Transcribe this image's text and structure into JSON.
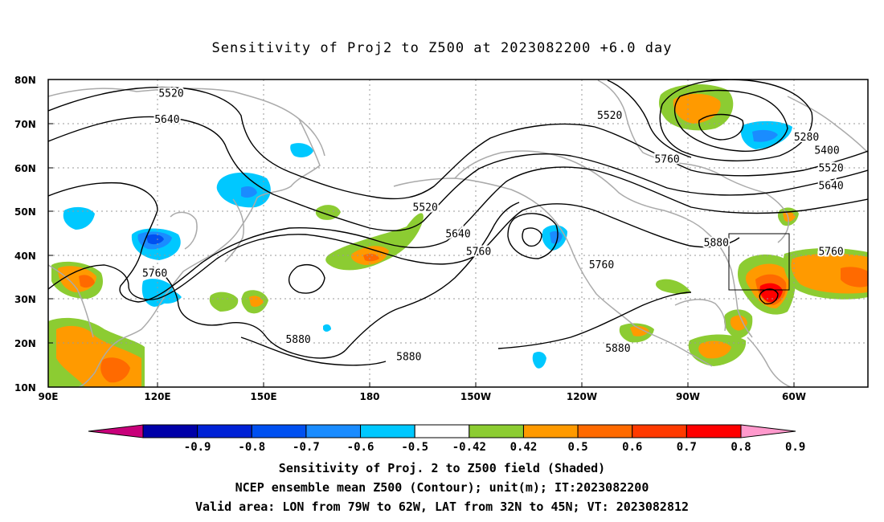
{
  "title": "Sensitivity of Proj2 to Z500 at 2023082200 +6.0 day",
  "map": {
    "lat_labels": [
      "80N",
      "70N",
      "60N",
      "50N",
      "40N",
      "30N",
      "20N",
      "10N"
    ],
    "lon_labels": [
      "90E",
      "120E",
      "150E",
      "180",
      "150W",
      "120W",
      "90W",
      "60W"
    ],
    "contour_labels": [
      {
        "text": "5520",
        "lon": 120,
        "lat": 77
      },
      {
        "text": "5640",
        "lon": 119,
        "lat": 71
      },
      {
        "text": "5520",
        "lon": 182,
        "lat": 51
      },
      {
        "text": "5640",
        "lon": 190,
        "lat": 45
      },
      {
        "text": "5760",
        "lon": 195,
        "lat": 41
      },
      {
        "text": "5760",
        "lon": 116,
        "lat": 36
      },
      {
        "text": "5880",
        "lon": 151,
        "lat": 21
      },
      {
        "text": "5880",
        "lon": 178,
        "lat": 17
      },
      {
        "text": "5520",
        "lon": 227,
        "lat": 72
      },
      {
        "text": "5760",
        "lon": 241,
        "lat": 62
      },
      {
        "text": "5760",
        "lon": 225,
        "lat": 38
      },
      {
        "text": "5880",
        "lon": 253,
        "lat": 43
      },
      {
        "text": "5880",
        "lon": 229,
        "lat": 19
      },
      {
        "text": "5280",
        "lon": 275,
        "lat": 67
      },
      {
        "text": "5400",
        "lon": 280,
        "lat": 64
      },
      {
        "text": "5520",
        "lon": 281,
        "lat": 60
      },
      {
        "text": "5640",
        "lon": 281,
        "lat": 56
      },
      {
        "text": "5760",
        "lon": 281,
        "lat": 41
      }
    ],
    "valid_box": {
      "lon_min": -79,
      "lon_max": -62,
      "lat_min": 32,
      "lat_max": 45
    }
  },
  "colorbar": {
    "levels": [
      "-0.9",
      "-0.8",
      "-0.7",
      "-0.6",
      "-0.5",
      "-0.42",
      "0.42",
      "0.5",
      "0.6",
      "0.7",
      "0.8",
      "0.9"
    ],
    "colors": [
      "#c8007a",
      "#0000a8",
      "#0022d6",
      "#0050f0",
      "#1a8cff",
      "#00c8ff",
      "#ffffff",
      "#8ccc32",
      "#ff9a00",
      "#ff6a00",
      "#ff3a00",
      "#ff0000",
      "#ff99cc"
    ]
  },
  "captions": [
    "Sensitivity of Proj. 2 to Z500 field (Shaded)",
    "NCEP ensemble mean Z500 (Contour); unit(m); IT:2023082200",
    "Valid area: LON from 79W to 62W, LAT from 32N to 45N; VT: 2023082812"
  ]
}
